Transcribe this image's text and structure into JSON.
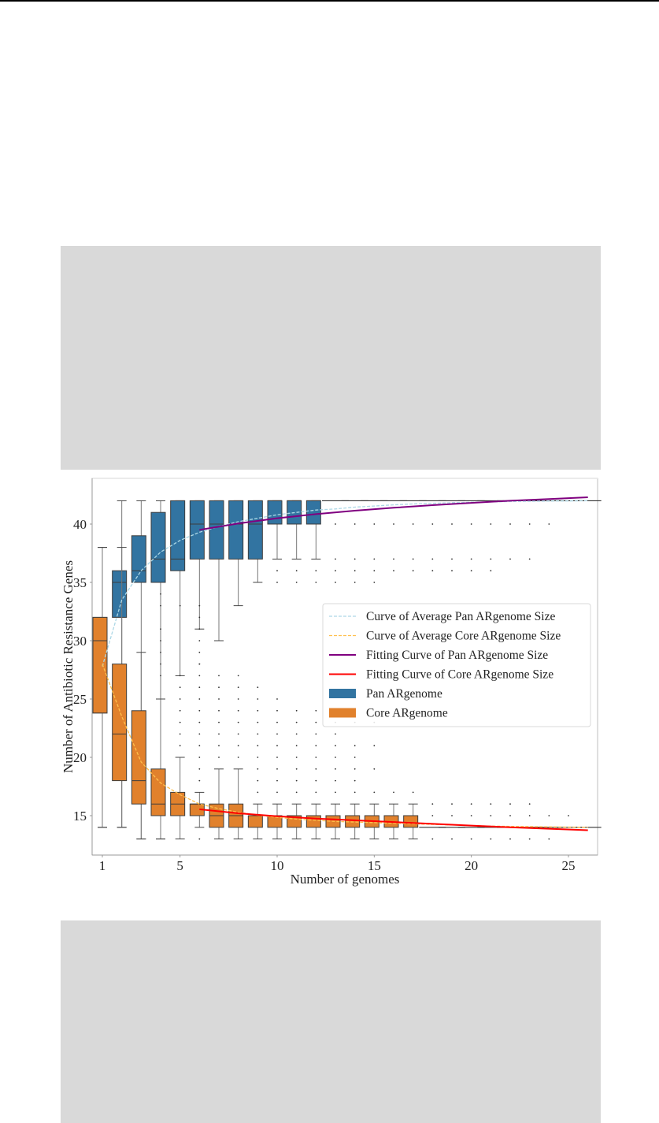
{
  "page": {
    "redacted_blocks": [
      "upper-figure-block",
      "lower-figure-block"
    ]
  },
  "chart_data": {
    "type": "box",
    "title": "",
    "xlabel": "Number of genomes",
    "ylabel": "Number of Antibiotic Resistance Genes",
    "xlim": [
      0.5,
      26.5
    ],
    "ylim": [
      12.2,
      43.8
    ],
    "xticks": [
      1,
      5,
      10,
      15,
      20,
      25
    ],
    "yticks": [
      15,
      20,
      25,
      30,
      35,
      40
    ],
    "grid": false,
    "legend_position": "center-right",
    "legend": [
      {
        "label": "Curve of Average Pan ARgenome Size",
        "kind": "dashed-line",
        "color": "#add8e6"
      },
      {
        "label": "Curve of Average Core ARgenome Size",
        "kind": "dashed-line",
        "color": "#ffc04d"
      },
      {
        "label": "Fitting Curve of Pan ARgenome Size",
        "kind": "line",
        "color": "#800080"
      },
      {
        "label": "Fitting Curve of Core ARgenome Size",
        "kind": "line",
        "color": "#ff0000"
      },
      {
        "label": "Pan ARgenome",
        "kind": "patch",
        "color": "#3274a1"
      },
      {
        "label": "Core ARgenome",
        "kind": "patch",
        "color": "#e1812c"
      }
    ],
    "series": [
      {
        "name": "Pan ARgenome",
        "color": "#3274a1",
        "boxes": [
          {
            "x": 1,
            "min": 14,
            "q1": 23.8,
            "median": 30,
            "q3": 32,
            "max": 38
          },
          {
            "x": 2,
            "min": 14,
            "q1": 32,
            "median": 35,
            "q3": 36,
            "max": 42
          },
          {
            "x": 3,
            "min": 13,
            "q1": 35,
            "median": 36,
            "q3": 39,
            "max": 42
          },
          {
            "x": 4,
            "min": 13,
            "q1": 35,
            "median": 37,
            "q3": 41,
            "max": 42
          },
          {
            "x": 5,
            "min": 27,
            "q1": 36,
            "median": 37,
            "q3": 42,
            "max": 42
          },
          {
            "x": 6,
            "min": 31,
            "q1": 37,
            "median": 40,
            "q3": 42,
            "max": 42
          },
          {
            "x": 7,
            "min": 30,
            "q1": 37,
            "median": 40,
            "q3": 42,
            "max": 42
          },
          {
            "x": 8,
            "min": 33,
            "q1": 37,
            "median": 40,
            "q3": 42,
            "max": 42
          },
          {
            "x": 9,
            "min": 35,
            "q1": 37,
            "median": 40,
            "q3": 42,
            "max": 42
          },
          {
            "x": 10,
            "min": 37,
            "q1": 40,
            "median": 42,
            "q3": 42,
            "max": 42
          },
          {
            "x": 11,
            "min": 37,
            "q1": 40,
            "median": 42,
            "q3": 42,
            "max": 42
          },
          {
            "x": 12,
            "min": 37,
            "q1": 40,
            "median": 42,
            "q3": 42,
            "max": 42
          },
          {
            "x": 13,
            "min": 42,
            "q1": 42,
            "median": 42,
            "q3": 42,
            "max": 42
          },
          {
            "x": 14,
            "min": 42,
            "q1": 42,
            "median": 42,
            "q3": 42,
            "max": 42
          },
          {
            "x": 15,
            "min": 42,
            "q1": 42,
            "median": 42,
            "q3": 42,
            "max": 42
          },
          {
            "x": 16,
            "min": 42,
            "q1": 42,
            "median": 42,
            "q3": 42,
            "max": 42
          },
          {
            "x": 17,
            "min": 42,
            "q1": 42,
            "median": 42,
            "q3": 42,
            "max": 42
          },
          {
            "x": 18,
            "min": 42,
            "q1": 42,
            "median": 42,
            "q3": 42,
            "max": 42
          },
          {
            "x": 19,
            "min": 42,
            "q1": 42,
            "median": 42,
            "q3": 42,
            "max": 42
          },
          {
            "x": 20,
            "min": 42,
            "q1": 42,
            "median": 42,
            "q3": 42,
            "max": 42
          },
          {
            "x": 21,
            "min": 42,
            "q1": 42,
            "median": 42,
            "q3": 42,
            "max": 42
          },
          {
            "x": 22,
            "min": 42,
            "q1": 42,
            "median": 42,
            "q3": 42,
            "max": 42
          },
          {
            "x": 23,
            "min": 42,
            "q1": 42,
            "median": 42,
            "q3": 42,
            "max": 42
          },
          {
            "x": 24,
            "min": 42,
            "q1": 42,
            "median": 42,
            "q3": 42,
            "max": 42
          },
          {
            "x": 25,
            "min": 42,
            "q1": 42,
            "median": 42,
            "q3": 42,
            "max": 42
          },
          {
            "x": 26,
            "min": 42,
            "q1": 42,
            "median": 42,
            "q3": 42,
            "max": 42
          }
        ],
        "fliers": [
          {
            "x": 4,
            "values": [
              34,
              33,
              31,
              30,
              29,
              28,
              27
            ]
          },
          {
            "x": 5,
            "values": [
              33
            ]
          },
          {
            "x": 6,
            "values": [
              28
            ]
          },
          {
            "x": 10,
            "values": [
              36,
              35
            ]
          },
          {
            "x": 11,
            "values": [
              36,
              35
            ]
          },
          {
            "x": 12,
            "values": [
              36,
              35
            ]
          },
          {
            "x": 13,
            "values": [
              40,
              37,
              36,
              35
            ]
          },
          {
            "x": 14,
            "values": [
              40,
              37,
              36,
              35
            ]
          },
          {
            "x": 15,
            "values": [
              40,
              37,
              36,
              35
            ]
          },
          {
            "x": 16,
            "values": [
              40,
              37,
              36
            ]
          },
          {
            "x": 17,
            "values": [
              40,
              37,
              36
            ]
          },
          {
            "x": 18,
            "values": [
              40,
              37,
              36
            ]
          },
          {
            "x": 19,
            "values": [
              40,
              37,
              36
            ]
          },
          {
            "x": 20,
            "values": [
              40,
              37,
              36
            ]
          },
          {
            "x": 21,
            "values": [
              40,
              37,
              36
            ]
          },
          {
            "x": 22,
            "values": [
              40,
              37
            ]
          },
          {
            "x": 23,
            "values": [
              40,
              37
            ]
          },
          {
            "x": 24,
            "values": [
              40
            ]
          }
        ]
      },
      {
        "name": "Core ARgenome",
        "color": "#e1812c",
        "boxes": [
          {
            "x": 1,
            "min": 14,
            "q1": 23.8,
            "median": 30,
            "q3": 32,
            "max": 38
          },
          {
            "x": 2,
            "min": 14,
            "q1": 18,
            "median": 22,
            "q3": 28,
            "max": 38
          },
          {
            "x": 3,
            "min": 13,
            "q1": 16,
            "median": 18,
            "q3": 24,
            "max": 29
          },
          {
            "x": 4,
            "min": 13,
            "q1": 15,
            "median": 16,
            "q3": 19,
            "max": 25
          },
          {
            "x": 5,
            "min": 13,
            "q1": 15,
            "median": 16,
            "q3": 17,
            "max": 20
          },
          {
            "x": 6,
            "min": 14,
            "q1": 15,
            "median": 16,
            "q3": 16,
            "max": 17
          },
          {
            "x": 7,
            "min": 13,
            "q1": 14,
            "median": 15,
            "q3": 16,
            "max": 19
          },
          {
            "x": 8,
            "min": 13,
            "q1": 14,
            "median": 15,
            "q3": 16,
            "max": 19
          },
          {
            "x": 9,
            "min": 13,
            "q1": 14,
            "median": 15,
            "q3": 15,
            "max": 16
          },
          {
            "x": 10,
            "min": 13,
            "q1": 14,
            "median": 15,
            "q3": 15,
            "max": 16
          },
          {
            "x": 11,
            "min": 13,
            "q1": 14,
            "median": 15,
            "q3": 15,
            "max": 16
          },
          {
            "x": 12,
            "min": 13,
            "q1": 14,
            "median": 15,
            "q3": 15,
            "max": 16
          },
          {
            "x": 13,
            "min": 13,
            "q1": 14,
            "median": 15,
            "q3": 15,
            "max": 16
          },
          {
            "x": 14,
            "min": 13,
            "q1": 14,
            "median": 15,
            "q3": 15,
            "max": 16
          },
          {
            "x": 15,
            "min": 13,
            "q1": 14,
            "median": 15,
            "q3": 15,
            "max": 16
          },
          {
            "x": 16,
            "min": 13,
            "q1": 14,
            "median": 15,
            "q3": 15,
            "max": 16
          },
          {
            "x": 17,
            "min": 13,
            "q1": 14,
            "median": 15,
            "q3": 15,
            "max": 16
          },
          {
            "x": 18,
            "min": 14,
            "q1": 14,
            "median": 14,
            "q3": 14,
            "max": 14
          },
          {
            "x": 19,
            "min": 14,
            "q1": 14,
            "median": 14,
            "q3": 14,
            "max": 14
          },
          {
            "x": 20,
            "min": 14,
            "q1": 14,
            "median": 14,
            "q3": 14,
            "max": 14
          },
          {
            "x": 21,
            "min": 14,
            "q1": 14,
            "median": 14,
            "q3": 14,
            "max": 14
          },
          {
            "x": 22,
            "min": 14,
            "q1": 14,
            "median": 14,
            "q3": 14,
            "max": 14
          },
          {
            "x": 23,
            "min": 14,
            "q1": 14,
            "median": 14,
            "q3": 14,
            "max": 14
          },
          {
            "x": 24,
            "min": 14,
            "q1": 14,
            "median": 14,
            "q3": 14,
            "max": 14
          },
          {
            "x": 25,
            "min": 14,
            "q1": 14,
            "median": 14,
            "q3": 14,
            "max": 14
          },
          {
            "x": 26,
            "min": 14,
            "q1": 14,
            "median": 14,
            "q3": 14,
            "max": 14
          }
        ],
        "fliers": [
          {
            "x": 5,
            "values": [
              27,
              26,
              25,
              24,
              23,
              22,
              21
            ]
          },
          {
            "x": 6,
            "values": [
              33,
              32,
              31,
              30,
              29,
              28,
              27,
              26,
              25,
              24,
              23,
              22,
              21,
              20,
              19,
              18,
              13
            ]
          },
          {
            "x": 7,
            "values": [
              27,
              26,
              25,
              24,
              23,
              22,
              21,
              20
            ]
          },
          {
            "x": 8,
            "values": [
              27,
              26,
              25,
              24,
              23,
              22,
              21,
              20
            ]
          },
          {
            "x": 9,
            "values": [
              26,
              25,
              24,
              23,
              22,
              21,
              20,
              19,
              18,
              17
            ]
          },
          {
            "x": 10,
            "values": [
              25,
              24,
              23,
              22,
              21,
              20,
              19,
              18,
              17
            ]
          },
          {
            "x": 11,
            "values": [
              24,
              23,
              22,
              21,
              20,
              19,
              18,
              17
            ]
          },
          {
            "x": 12,
            "values": [
              24,
              23,
              22,
              21,
              20,
              19,
              18,
              17
            ]
          },
          {
            "x": 13,
            "values": [
              24,
              23,
              22,
              21,
              20,
              19,
              18,
              17
            ]
          },
          {
            "x": 14,
            "values": [
              23,
              21,
              20,
              19,
              18,
              17
            ]
          },
          {
            "x": 15,
            "values": [
              23,
              21,
              19,
              17
            ]
          },
          {
            "x": 16,
            "values": [
              17
            ]
          },
          {
            "x": 17,
            "values": [
              17
            ]
          },
          {
            "x": 18,
            "values": [
              16,
              15,
              13
            ]
          },
          {
            "x": 19,
            "values": [
              16,
              15,
              13
            ]
          },
          {
            "x": 20,
            "values": [
              16,
              15,
              13
            ]
          },
          {
            "x": 21,
            "values": [
              16,
              15,
              13
            ]
          },
          {
            "x": 22,
            "values": [
              16,
              15,
              13
            ]
          },
          {
            "x": 23,
            "values": [
              16,
              15,
              13
            ]
          },
          {
            "x": 24,
            "values": [
              15,
              13
            ]
          },
          {
            "x": 25,
            "values": [
              15
            ]
          }
        ]
      }
    ],
    "lines": [
      {
        "name": "Curve of Average Pan ARgenome Size",
        "style": "dashed",
        "color": "#add8e6",
        "x": [
          1,
          2,
          3,
          4,
          5,
          6,
          7,
          8,
          9,
          10,
          11,
          12,
          13,
          14,
          15,
          16,
          17,
          18,
          19,
          20,
          21,
          22,
          23,
          24,
          25,
          26
        ],
        "y": [
          27.8,
          33.5,
          36.0,
          37.6,
          38.6,
          39.3,
          39.8,
          40.2,
          40.5,
          40.8,
          41.0,
          41.2,
          41.3,
          41.45,
          41.55,
          41.65,
          41.72,
          41.78,
          41.83,
          41.87,
          41.9,
          41.93,
          41.95,
          41.97,
          41.98,
          42.0
        ]
      },
      {
        "name": "Curve of Average Core ARgenome Size",
        "style": "dashed",
        "color": "#ffc04d",
        "x": [
          1,
          2,
          3,
          4,
          5,
          6,
          7,
          8,
          9,
          10,
          11,
          12,
          13,
          14,
          15,
          16,
          17,
          18,
          19,
          20,
          21,
          22,
          23,
          24,
          25,
          26
        ],
        "y": [
          28.0,
          23.5,
          19.6,
          17.8,
          16.8,
          16.0,
          15.6,
          15.3,
          15.05,
          14.85,
          14.7,
          14.6,
          14.5,
          14.45,
          14.4,
          14.35,
          14.3,
          14.25,
          14.2,
          14.15,
          14.1,
          14.08,
          14.06,
          14.04,
          14.02,
          14.0
        ]
      },
      {
        "name": "Fitting Curve of Pan ARgenome Size",
        "style": "solid",
        "color": "#800080",
        "x": [
          6,
          8,
          10,
          12,
          14,
          16,
          18,
          20,
          22,
          24,
          26
        ],
        "y": [
          39.5,
          40.05,
          40.5,
          40.85,
          41.15,
          41.4,
          41.62,
          41.82,
          42.0,
          42.15,
          42.3
        ]
      },
      {
        "name": "Fitting Curve of Core ARgenome Size",
        "style": "solid",
        "color": "#ff0000",
        "x": [
          6,
          8,
          10,
          12,
          14,
          16,
          18,
          20,
          22,
          24,
          26
        ],
        "y": [
          15.55,
          15.2,
          14.95,
          14.75,
          14.6,
          14.45,
          14.3,
          14.15,
          14.0,
          13.88,
          13.75
        ]
      }
    ]
  }
}
